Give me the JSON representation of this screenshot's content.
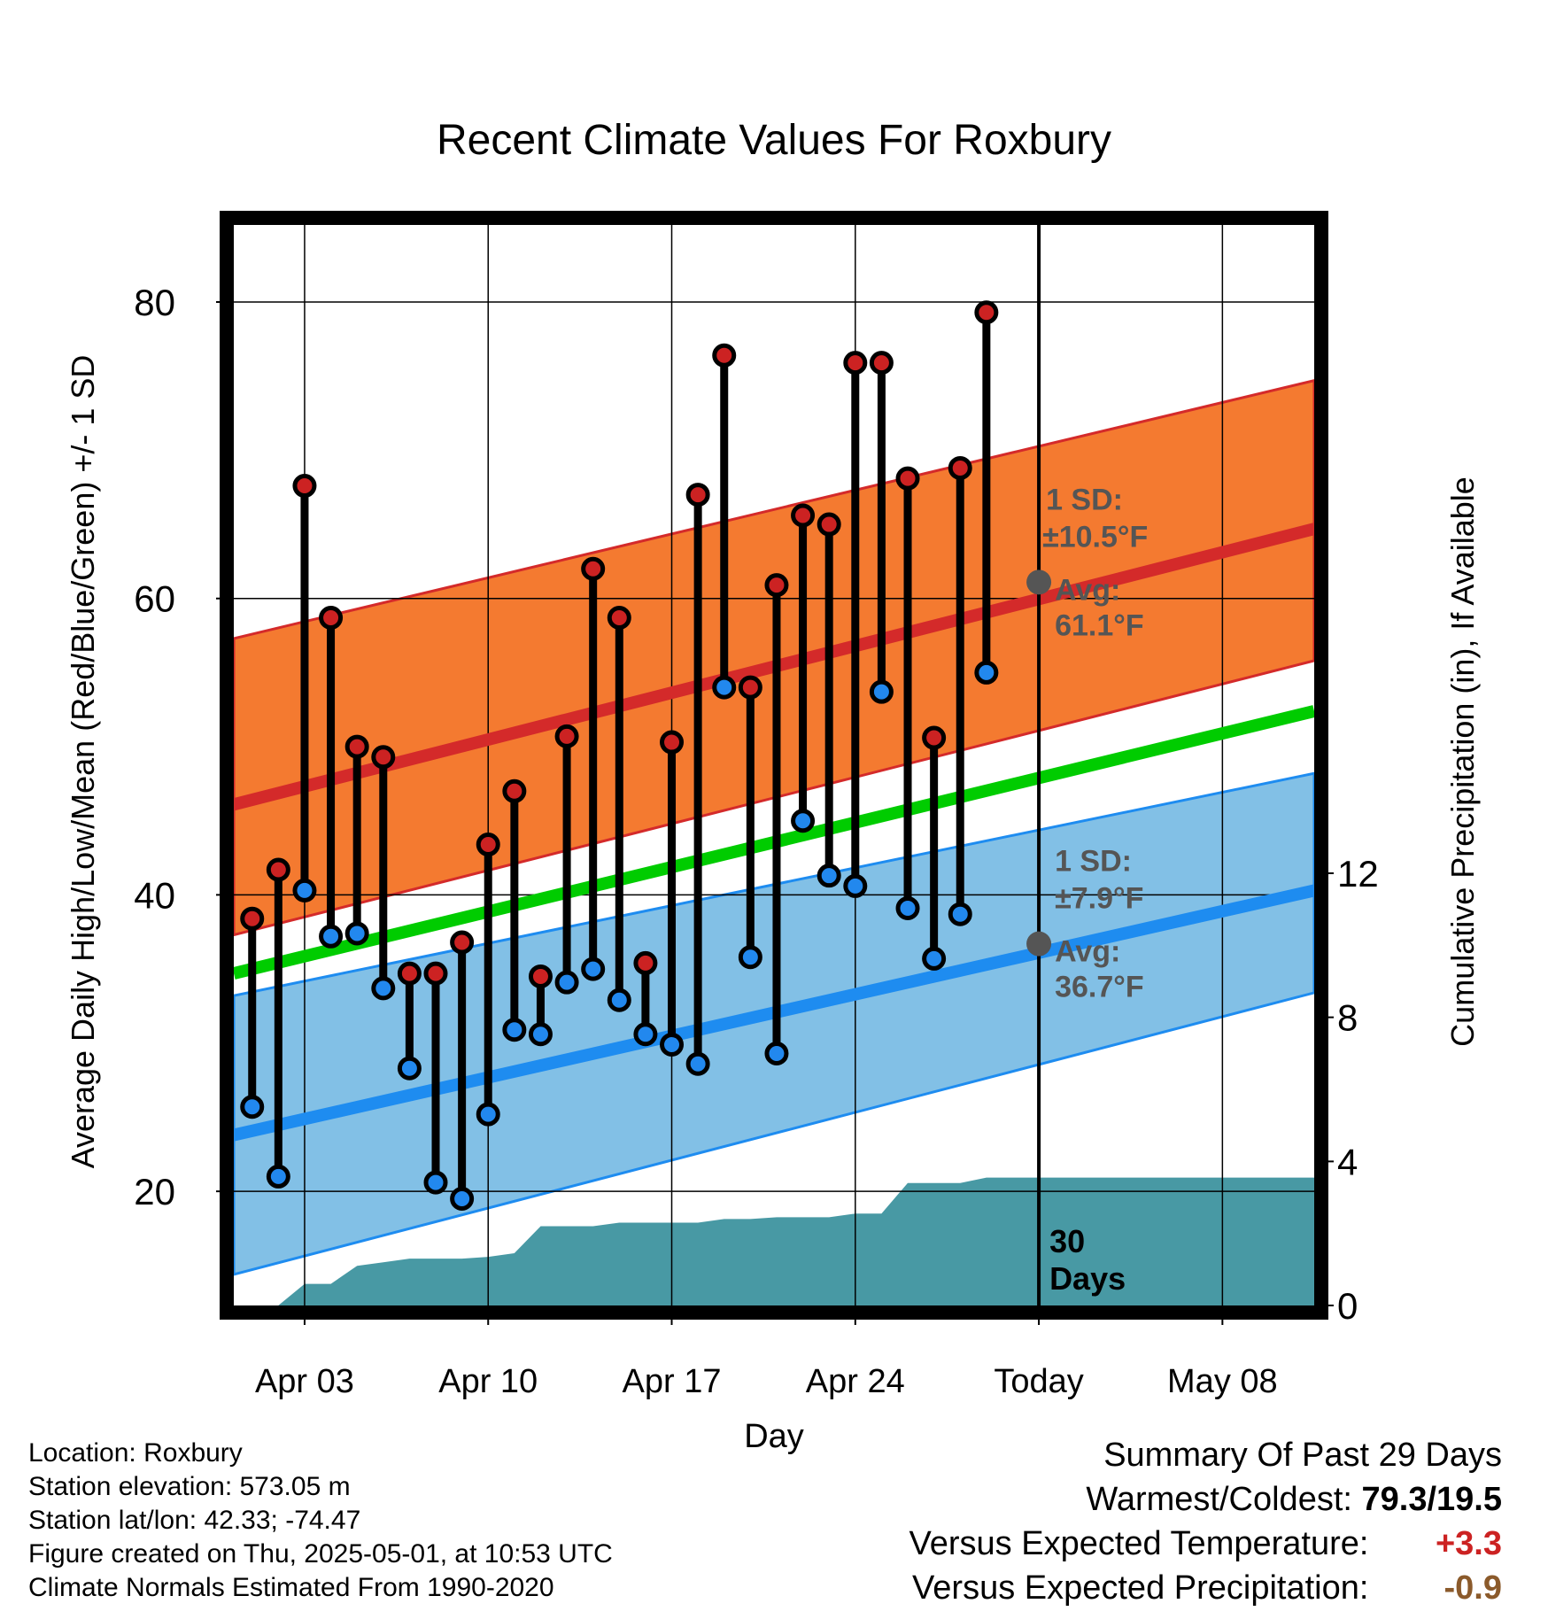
{
  "chart_data": {
    "type": "line",
    "title": "Recent Climate Values For Roxbury",
    "xlabel": "Day",
    "ylabel": "Average Daily High/Low/Mean (Red/Blue/Green) +/- 1 SD",
    "y2label": "Cumulative Precipitation (in), If Available",
    "x_tick_labels": [
      "Apr 03",
      "Apr 10",
      "Apr 17",
      "Apr 24",
      "Today",
      "May 08"
    ],
    "x_tick_days": [
      3,
      10,
      17,
      24,
      31,
      38
    ],
    "xlim": [
      0.3,
      41.5
    ],
    "ylim": [
      12.3,
      85.2
    ],
    "y_ticks": [
      20,
      40,
      60,
      80
    ],
    "y2lim": [
      0,
      30
    ],
    "y2_ticks": [
      0,
      4,
      8,
      12
    ],
    "today_day": 31,
    "series": [
      {
        "name": "High",
        "days": [
          1,
          2,
          3,
          4,
          5,
          6,
          7,
          8,
          9,
          10,
          11,
          12,
          13,
          14,
          15,
          16,
          17,
          18,
          19,
          20,
          21,
          22,
          23,
          24,
          25,
          26,
          27,
          28,
          29
        ],
        "values": [
          38.4,
          41.7,
          67.6,
          58.7,
          50,
          49.3,
          34.7,
          34.7,
          36.8,
          43.4,
          47,
          34.5,
          50.7,
          62,
          58.7,
          35.4,
          50.3,
          67,
          76.4,
          54,
          60.9,
          65.6,
          65,
          75.9,
          75.9,
          68.1,
          50.6,
          68.8,
          79.3
        ]
      },
      {
        "name": "Low",
        "days": [
          1,
          2,
          3,
          4,
          5,
          6,
          7,
          8,
          9,
          10,
          11,
          12,
          13,
          14,
          15,
          16,
          17,
          18,
          19,
          20,
          21,
          22,
          23,
          24,
          25,
          26,
          27,
          28,
          29
        ],
        "values": [
          25.7,
          21,
          40.3,
          37.2,
          37.4,
          33.7,
          28.3,
          20.6,
          19.5,
          25.2,
          30.9,
          30.6,
          34.1,
          35,
          32.9,
          30.6,
          29.9,
          28.6,
          54,
          35.8,
          29.3,
          45,
          41.3,
          40.6,
          53.7,
          39.1,
          35.7,
          38.7,
          55
        ]
      }
    ],
    "normals": {
      "high_avg": {
        "days": [
          0.3,
          41.5
        ],
        "values": [
          46.1,
          64.7
        ]
      },
      "high_upper": {
        "days": [
          0.3,
          41.5
        ],
        "values": [
          57.3,
          74.7
        ]
      },
      "high_lower": {
        "days": [
          0.3,
          41.5
        ],
        "values": [
          37.3,
          55.8
        ]
      },
      "mean_avg": {
        "days": [
          0.3,
          41.5
        ],
        "values": [
          34.7,
          52.4
        ]
      },
      "low_avg": {
        "days": [
          0.3,
          41.5
        ],
        "values": [
          23.8,
          40.3
        ]
      },
      "low_upper": {
        "days": [
          0.3,
          41.5
        ],
        "values": [
          33.2,
          48.2
        ]
      },
      "low_lower": {
        "days": [
          0.3,
          41.5
        ],
        "values": [
          14.4,
          33.4
        ]
      }
    },
    "precip": {
      "days": [
        0.3,
        2,
        3,
        4,
        5,
        6,
        7,
        8,
        9,
        10,
        11,
        12,
        13,
        14,
        15,
        16,
        17,
        18,
        19,
        20,
        21,
        22,
        23,
        24,
        25,
        26,
        27,
        28,
        29,
        41.5
      ],
      "values": [
        0,
        0,
        0.6,
        0.6,
        1.1,
        1.2,
        1.3,
        1.3,
        1.3,
        1.35,
        1.45,
        2.2,
        2.2,
        2.2,
        2.3,
        2.3,
        2.3,
        2.3,
        2.4,
        2.4,
        2.45,
        2.45,
        2.45,
        2.55,
        2.55,
        3.4,
        3.4,
        3.4,
        3.55,
        3.55
      ]
    },
    "annotations": {
      "high_sd_label": "1 SD:",
      "high_sd_value": "±10.5°F",
      "high_avg_label": "Avg:",
      "high_avg_value": "61.1°F",
      "high_avg_today": 61.1,
      "low_sd_label": "1 SD:",
      "low_sd_value": "±7.9°F",
      "low_avg_label": "Avg:",
      "low_avg_value": "36.7°F",
      "low_avg_today": 36.7,
      "days_count": "30",
      "days_label": "Days"
    },
    "colors": {
      "high_band": "#f47a30",
      "high_line": "#d42a2a",
      "mean_line": "#00cc00",
      "low_band": "#82c0e6",
      "low_line": "#1e8cf0",
      "precip": "#4899a4",
      "high_dot": "#cc2222",
      "low_dot": "#2288ee",
      "annotation": "#555555"
    }
  },
  "info": {
    "location": "Location: Roxbury",
    "elevation": "Station elevation: 573.05 m",
    "latlon": "Station lat/lon: 42.33; -74.47",
    "created": "Figure created on Thu, 2025-05-01, at 10:53 UTC",
    "normals": "Climate Normals Estimated From 1990-2020"
  },
  "summary": {
    "title": "Summary Of Past 29 Days",
    "warmest_label": "Warmest/Coldest:",
    "warmest_value": "79.3/19.5",
    "temp_label": "Versus Expected Temperature:",
    "temp_value": "+3.3",
    "precip_label": "Versus Expected Precipitation:",
    "precip_value": "-0.9"
  }
}
